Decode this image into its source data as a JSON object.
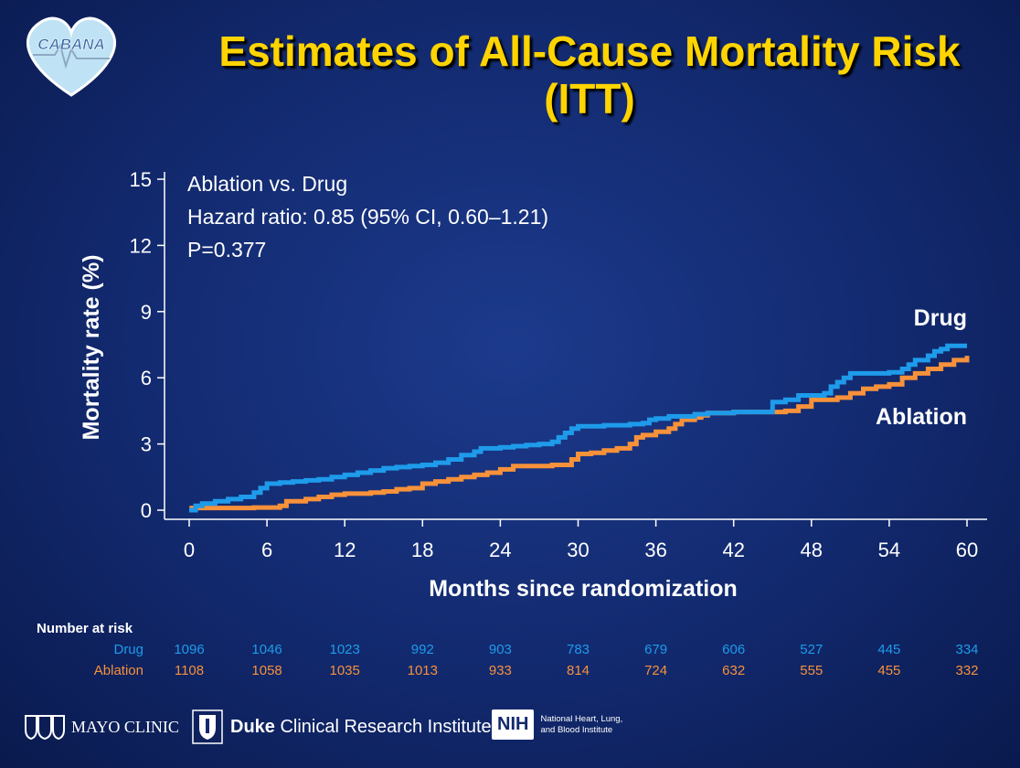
{
  "header": {
    "title_line1": "Estimates of All-Cause Mortality Risk",
    "title_line2": "(ITT)",
    "logo_text": "CABANA"
  },
  "colors": {
    "drug": "#1e9bea",
    "ablation": "#f7913a",
    "title": "#ffd400"
  },
  "chart_data": {
    "type": "line",
    "xlabel": "Months since randomization",
    "ylabel": "Mortality rate (%)",
    "xlim": [
      0,
      60
    ],
    "ylim": [
      0,
      15
    ],
    "x_ticks": [
      0,
      6,
      12,
      18,
      24,
      30,
      36,
      42,
      48,
      54,
      60
    ],
    "y_ticks": [
      0,
      3,
      6,
      9,
      12,
      15
    ],
    "grid": false,
    "annotations": [
      "Ablation vs. Drug",
      "Hazard ratio: 0.85 (95% CI, 0.60–1.21)",
      "P=0.377"
    ],
    "series": [
      {
        "name": "Drug",
        "step": true,
        "points": [
          [
            0,
            0
          ],
          [
            0.5,
            0.2
          ],
          [
            1,
            0.3
          ],
          [
            2,
            0.4
          ],
          [
            3,
            0.5
          ],
          [
            4,
            0.6
          ],
          [
            5,
            0.8
          ],
          [
            5.5,
            1.0
          ],
          [
            6,
            1.2
          ],
          [
            7,
            1.25
          ],
          [
            8,
            1.3
          ],
          [
            9,
            1.35
          ],
          [
            10,
            1.4
          ],
          [
            11,
            1.5
          ],
          [
            12,
            1.6
          ],
          [
            13,
            1.7
          ],
          [
            14,
            1.8
          ],
          [
            15,
            1.9
          ],
          [
            16,
            1.95
          ],
          [
            17,
            2.0
          ],
          [
            18,
            2.05
          ],
          [
            19,
            2.15
          ],
          [
            20,
            2.3
          ],
          [
            21,
            2.5
          ],
          [
            22,
            2.65
          ],
          [
            22.5,
            2.8
          ],
          [
            24,
            2.85
          ],
          [
            25,
            2.9
          ],
          [
            26,
            2.95
          ],
          [
            27,
            3.0
          ],
          [
            28,
            3.1
          ],
          [
            28.5,
            3.3
          ],
          [
            29,
            3.5
          ],
          [
            29.5,
            3.7
          ],
          [
            30,
            3.8
          ],
          [
            32,
            3.85
          ],
          [
            34,
            3.9
          ],
          [
            35,
            3.95
          ],
          [
            35.5,
            4.1
          ],
          [
            36,
            4.15
          ],
          [
            37,
            4.25
          ],
          [
            39,
            4.35
          ],
          [
            40,
            4.4
          ],
          [
            42,
            4.45
          ],
          [
            44,
            4.45
          ],
          [
            45,
            4.9
          ],
          [
            46,
            5.0
          ],
          [
            47,
            5.2
          ],
          [
            49,
            5.3
          ],
          [
            49.5,
            5.6
          ],
          [
            50,
            5.8
          ],
          [
            50.5,
            6.0
          ],
          [
            51,
            6.2
          ],
          [
            54,
            6.25
          ],
          [
            55,
            6.4
          ],
          [
            55.5,
            6.6
          ],
          [
            56,
            6.8
          ],
          [
            57,
            7.0
          ],
          [
            57.5,
            7.2
          ],
          [
            58,
            7.3
          ],
          [
            58.5,
            7.45
          ],
          [
            60,
            7.45
          ]
        ]
      },
      {
        "name": "Ablation",
        "step": true,
        "points": [
          [
            0,
            0
          ],
          [
            0.2,
            0.1
          ],
          [
            5,
            0.12
          ],
          [
            7,
            0.2
          ],
          [
            7.5,
            0.4
          ],
          [
            9,
            0.5
          ],
          [
            10,
            0.6
          ],
          [
            11,
            0.7
          ],
          [
            12,
            0.75
          ],
          [
            14,
            0.8
          ],
          [
            15,
            0.85
          ],
          [
            16,
            0.95
          ],
          [
            17,
            1.0
          ],
          [
            18,
            1.2
          ],
          [
            19,
            1.3
          ],
          [
            20,
            1.4
          ],
          [
            21,
            1.5
          ],
          [
            22,
            1.6
          ],
          [
            23,
            1.7
          ],
          [
            24,
            1.85
          ],
          [
            25,
            2.0
          ],
          [
            28,
            2.05
          ],
          [
            29.5,
            2.3
          ],
          [
            30,
            2.55
          ],
          [
            31,
            2.6
          ],
          [
            32,
            2.7
          ],
          [
            33,
            2.8
          ],
          [
            34,
            3.0
          ],
          [
            34.5,
            3.3
          ],
          [
            35,
            3.4
          ],
          [
            36,
            3.55
          ],
          [
            37,
            3.7
          ],
          [
            37.5,
            3.9
          ],
          [
            38,
            4.1
          ],
          [
            39,
            4.2
          ],
          [
            39.5,
            4.3
          ],
          [
            40,
            4.4
          ],
          [
            42,
            4.45
          ],
          [
            46,
            4.5
          ],
          [
            47,
            4.7
          ],
          [
            48,
            5.0
          ],
          [
            50,
            5.1
          ],
          [
            51,
            5.3
          ],
          [
            52,
            5.5
          ],
          [
            53,
            5.6
          ],
          [
            54,
            5.7
          ],
          [
            55,
            6.0
          ],
          [
            56,
            6.2
          ],
          [
            57,
            6.4
          ],
          [
            58,
            6.6
          ],
          [
            59,
            6.8
          ],
          [
            60,
            7.0
          ]
        ]
      }
    ],
    "series_labels": {
      "drug": "Drug",
      "ablation": "Ablation"
    }
  },
  "risk_table": {
    "title": "Number at risk",
    "drug_label": "Drug",
    "ablation_label": "Ablation",
    "drug": [
      "1096",
      "1046",
      "1023",
      "992",
      "903",
      "783",
      "679",
      "606",
      "527",
      "445",
      "334"
    ],
    "ablation": [
      "1108",
      "1058",
      "1035",
      "1013",
      "933",
      "814",
      "724",
      "632",
      "555",
      "455",
      "332"
    ]
  },
  "footer": {
    "mayo": "MAYO CLINIC",
    "duke_bold": "Duke",
    "duke_rest": "Clinical Research Institute",
    "nih": "NIH",
    "nhlbi_line1": "National Heart, Lung,",
    "nhlbi_line2": "and Blood Institute"
  }
}
